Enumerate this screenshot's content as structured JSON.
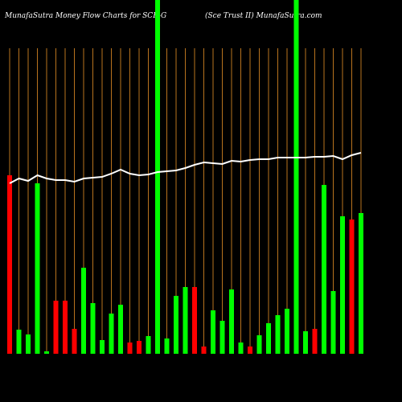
{
  "chart_data": {
    "type": "bar",
    "title": "MunafaSutra  Money Flow  Charts for SCE-G",
    "subtitle": "(Sce    Trust II) MunafaSutra.com",
    "categories": [
      null,
      null,
      null,
      null,
      null,
      null,
      null,
      null,
      null,
      null,
      null,
      null,
      null,
      null,
      null,
      null,
      null,
      null,
      null,
      null,
      null,
      null,
      null,
      null,
      null,
      null,
      null,
      null,
      null,
      null,
      null,
      null,
      null,
      null,
      null,
      null,
      null,
      null,
      null
    ],
    "values": [
      222,
      30,
      24,
      212,
      3,
      66,
      66,
      31,
      107,
      63,
      17,
      50,
      61,
      14,
      16,
      22,
      440,
      19,
      72,
      83,
      83,
      9,
      54,
      41,
      80,
      14,
      9,
      23,
      38,
      48,
      56,
      440,
      28,
      31,
      210,
      78,
      171,
      167,
      175
    ],
    "colors": [
      "#ff0000",
      "#00ff00",
      "#00ff00",
      "#00ff00",
      "#00ff00",
      "#ff0000",
      "#ff0000",
      "#ff0000",
      "#00ff00",
      "#00ff00",
      "#00ff00",
      "#00ff00",
      "#00ff00",
      "#ff0000",
      "#ff0000",
      "#00ff00",
      "#00ff00",
      "#00ff00",
      "#00ff00",
      "#00ff00",
      "#ff0000",
      "#ff0000",
      "#00ff00",
      "#00ff00",
      "#00ff00",
      "#00ff00",
      "#ff0000",
      "#00ff00",
      "#00ff00",
      "#00ff00",
      "#00ff00",
      "#00ff00",
      "#00ff00",
      "#ff0000",
      "#00ff00",
      "#00ff00",
      "#00ff00",
      "#ff0000",
      "#00ff00"
    ],
    "line_values": [
      212,
      218,
      215,
      222,
      218,
      216,
      216,
      214,
      218,
      219,
      220,
      224,
      229,
      224,
      222,
      223,
      226,
      227,
      228,
      231,
      235,
      238,
      237,
      236,
      240,
      239,
      241,
      242,
      242,
      244,
      244,
      244,
      244,
      245,
      245,
      246,
      242,
      247,
      250
    ],
    "line_color": "#ffffff",
    "ylim": [
      0,
      440
    ]
  }
}
